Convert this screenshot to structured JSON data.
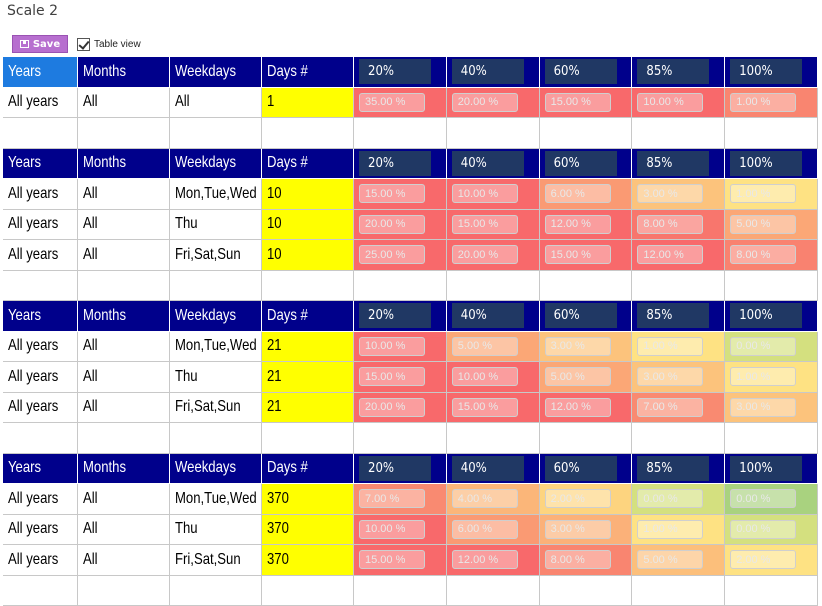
{
  "page_title": "Scale 2",
  "toolbar": {
    "save_label": "Save",
    "table_view_label": "Table view"
  },
  "headers": {
    "years": "Years",
    "months": "Months",
    "weekdays": "Weekdays",
    "days": "Days #",
    "pcts": [
      "20%",
      "40%",
      "60%",
      "85%",
      "100%"
    ]
  },
  "colors": {
    "header_bg": "#00008b",
    "pct_bg": "#203864",
    "days_bg": "#ffff00",
    "first_header_bg": "#1e7be0"
  },
  "sections": [
    {
      "rows": [
        {
          "years": "All years",
          "months": "All",
          "weekdays": "All",
          "days": "1",
          "cells": [
            {
              "v": "35.00 %",
              "c": "#f8696b"
            },
            {
              "v": "20.00 %",
              "c": "#f8696b"
            },
            {
              "v": "15.00 %",
              "c": "#f8696b"
            },
            {
              "v": "10.00 %",
              "c": "#f8696b"
            },
            {
              "v": "1.00 %",
              "c": "#f98570"
            }
          ]
        }
      ]
    },
    {
      "rows": [
        {
          "years": "All years",
          "months": "All",
          "weekdays": "Mon,Tue,Wed",
          "days": "10",
          "cells": [
            {
              "v": "15.00 %",
              "c": "#f8696b"
            },
            {
              "v": "10.00 %",
              "c": "#f8696b"
            },
            {
              "v": "6.00 %",
              "c": "#fa9a73"
            },
            {
              "v": "3.00 %",
              "c": "#fcc37c"
            },
            {
              "v": "1.00 %",
              "c": "#fee283"
            }
          ]
        },
        {
          "years": "All years",
          "months": "All",
          "weekdays": "Thu",
          "days": "10",
          "cells": [
            {
              "v": "20.00 %",
              "c": "#f8696b"
            },
            {
              "v": "15.00 %",
              "c": "#f8696b"
            },
            {
              "v": "12.00 %",
              "c": "#f8696b"
            },
            {
              "v": "8.00 %",
              "c": "#f8766d"
            },
            {
              "v": "5.00 %",
              "c": "#fba776"
            }
          ]
        },
        {
          "years": "All years",
          "months": "All",
          "weekdays": "Fri,Sat,Sun",
          "days": "10",
          "cells": [
            {
              "v": "25.00 %",
              "c": "#f8696b"
            },
            {
              "v": "20.00 %",
              "c": "#f8696b"
            },
            {
              "v": "15.00 %",
              "c": "#f8696b"
            },
            {
              "v": "12.00 %",
              "c": "#f8696b"
            },
            {
              "v": "8.00 %",
              "c": "#f98270"
            }
          ]
        }
      ]
    },
    {
      "rows": [
        {
          "years": "All years",
          "months": "All",
          "weekdays": "Mon,Tue,Wed",
          "days": "21",
          "cells": [
            {
              "v": "10.00 %",
              "c": "#f8696b"
            },
            {
              "v": "5.00 %",
              "c": "#fba776"
            },
            {
              "v": "3.00 %",
              "c": "#fcc37c"
            },
            {
              "v": "1.00 %",
              "c": "#fee283"
            },
            {
              "v": "0.00 %",
              "c": "#d4e07f"
            }
          ]
        },
        {
          "years": "All years",
          "months": "All",
          "weekdays": "Thu",
          "days": "21",
          "cells": [
            {
              "v": "15.00 %",
              "c": "#f8696b"
            },
            {
              "v": "10.00 %",
              "c": "#f8696b"
            },
            {
              "v": "5.00 %",
              "c": "#fba776"
            },
            {
              "v": "3.00 %",
              "c": "#fcc37c"
            },
            {
              "v": "1.00 %",
              "c": "#fee283"
            }
          ]
        },
        {
          "years": "All years",
          "months": "All",
          "weekdays": "Fri,Sat,Sun",
          "days": "21",
          "cells": [
            {
              "v": "20.00 %",
              "c": "#f8696b"
            },
            {
              "v": "15.00 %",
              "c": "#f8696b"
            },
            {
              "v": "12.00 %",
              "c": "#f8696b"
            },
            {
              "v": "7.00 %",
              "c": "#f98a71"
            },
            {
              "v": "3.00 %",
              "c": "#fcc37c"
            }
          ]
        }
      ]
    },
    {
      "rows": [
        {
          "years": "All years",
          "months": "All",
          "weekdays": "Mon,Tue,Wed",
          "days": "370",
          "cells": [
            {
              "v": "7.00 %",
              "c": "#f98a71"
            },
            {
              "v": "4.00 %",
              "c": "#fbb679"
            },
            {
              "v": "2.00 %",
              "c": "#fdd47f"
            },
            {
              "v": "0.00 %",
              "c": "#d4e07f"
            },
            {
              "v": "0.00 %",
              "c": "#a9d27f"
            }
          ]
        },
        {
          "years": "All years",
          "months": "All",
          "weekdays": "Thu",
          "days": "370",
          "cells": [
            {
              "v": "10.00 %",
              "c": "#f8696b"
            },
            {
              "v": "6.00 %",
              "c": "#fa9a73"
            },
            {
              "v": "3.00 %",
              "c": "#fbb179"
            },
            {
              "v": "1.00 %",
              "c": "#fee283"
            },
            {
              "v": "0.00 %",
              "c": "#d4e07f"
            }
          ]
        },
        {
          "years": "All years",
          "months": "All",
          "weekdays": "Fri,Sat,Sun",
          "days": "370",
          "cells": [
            {
              "v": "15.00 %",
              "c": "#f8696b"
            },
            {
              "v": "12.00 %",
              "c": "#f8696b"
            },
            {
              "v": "8.00 %",
              "c": "#f98570"
            },
            {
              "v": "5.00 %",
              "c": "#fcbf7b"
            },
            {
              "v": "2.00 %",
              "c": "#fee283"
            }
          ]
        }
      ]
    }
  ]
}
